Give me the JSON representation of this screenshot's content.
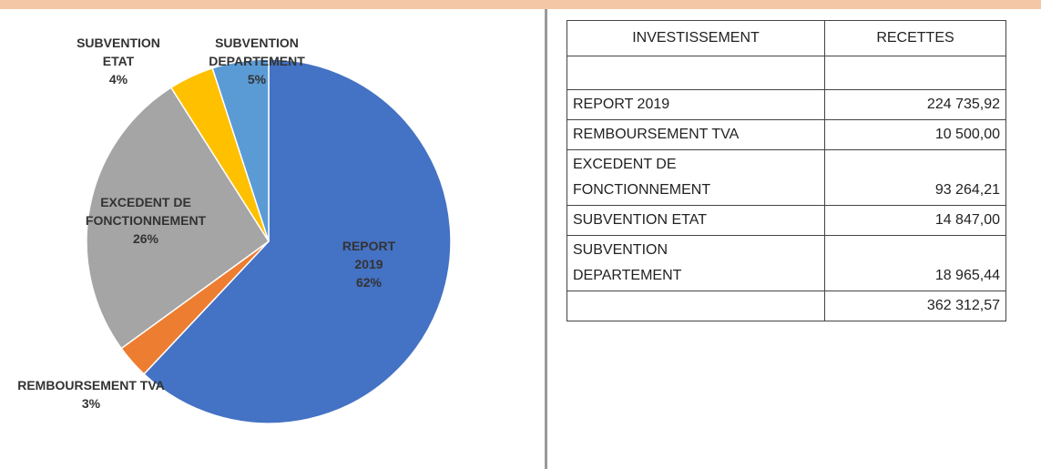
{
  "chart_data": {
    "type": "pie",
    "categories": [
      "REPORT 2019",
      "REMBOURSEMENT TVA",
      "EXCEDENT DE FONCTIONNEMENT",
      "SUBVENTION ETAT",
      "SUBVENTION DEPARTEMENT"
    ],
    "values": [
      62,
      3,
      26,
      4,
      5
    ],
    "value_labels": [
      "62%",
      "3%",
      "26%",
      "4%",
      "5%"
    ],
    "colors": [
      "#4472c4",
      "#ed7d31",
      "#a5a5a5",
      "#ffc000",
      "#5b9bd5"
    ]
  },
  "table": {
    "header": [
      "INVESTISSEMENT",
      "RECETTES"
    ],
    "rows": [
      [
        "REPORT 2019",
        "224 735,92"
      ],
      [
        "REMBOURSEMENT TVA",
        "10 500,00"
      ],
      [
        "EXCEDENT DE\nFONCTIONNEMENT",
        "93 264,21"
      ],
      [
        "SUBVENTION ETAT",
        "14 847,00"
      ],
      [
        "SUBVENTION\nDEPARTEMENT",
        "18 965,44"
      ]
    ],
    "total": "362 312,57"
  }
}
